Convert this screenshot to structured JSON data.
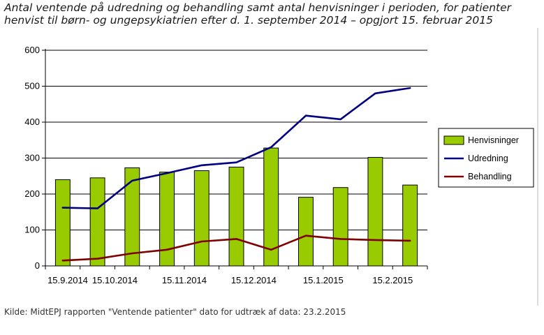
{
  "title_lines": [
    "Antal ventende på udredning og behandling samt antal henvisninger i perioden, for patienter",
    "henvist til børn- og ungepsykiatrien efter d. 1. september 2014 – opgjort 15. februar 2015"
  ],
  "source": "Kilde: MidtEPJ rapporten \"Ventende patienter\" dato for udtræk af data: 23.2.2015",
  "chart_data": {
    "type": "bar",
    "title": "Antal ventende på udredning og behandling samt antal henvisninger i perioden, for patienter henvist til børn- og ungepsykiatrien efter d. 1. september 2014 – opgjort 15. februar 2015",
    "xlabel": "",
    "ylabel": "",
    "ylim": [
      0,
      600
    ],
    "yticks": [
      0,
      100,
      200,
      300,
      400,
      500,
      600
    ],
    "xtick_labels": [
      "15.9.2014",
      "15.10.2014",
      "15.11.2014",
      "15.12.2014",
      "15.1.2015",
      "15.2.2015"
    ],
    "grid": true,
    "legend_position": "right",
    "series": [
      {
        "name": "Henvisninger",
        "type": "bar",
        "color": "#99cc00",
        "values": [
          240,
          245,
          273,
          261,
          265,
          275,
          328,
          191,
          218,
          302,
          225
        ]
      },
      {
        "name": "Udredning",
        "type": "line",
        "color": "#000080",
        "values": [
          162,
          160,
          237,
          258,
          280,
          288,
          330,
          418,
          408,
          480,
          495
        ]
      },
      {
        "name": "Behandling",
        "type": "line",
        "color": "#800000",
        "values": [
          15,
          20,
          35,
          45,
          68,
          75,
          45,
          84,
          75,
          72,
          70
        ]
      }
    ]
  }
}
